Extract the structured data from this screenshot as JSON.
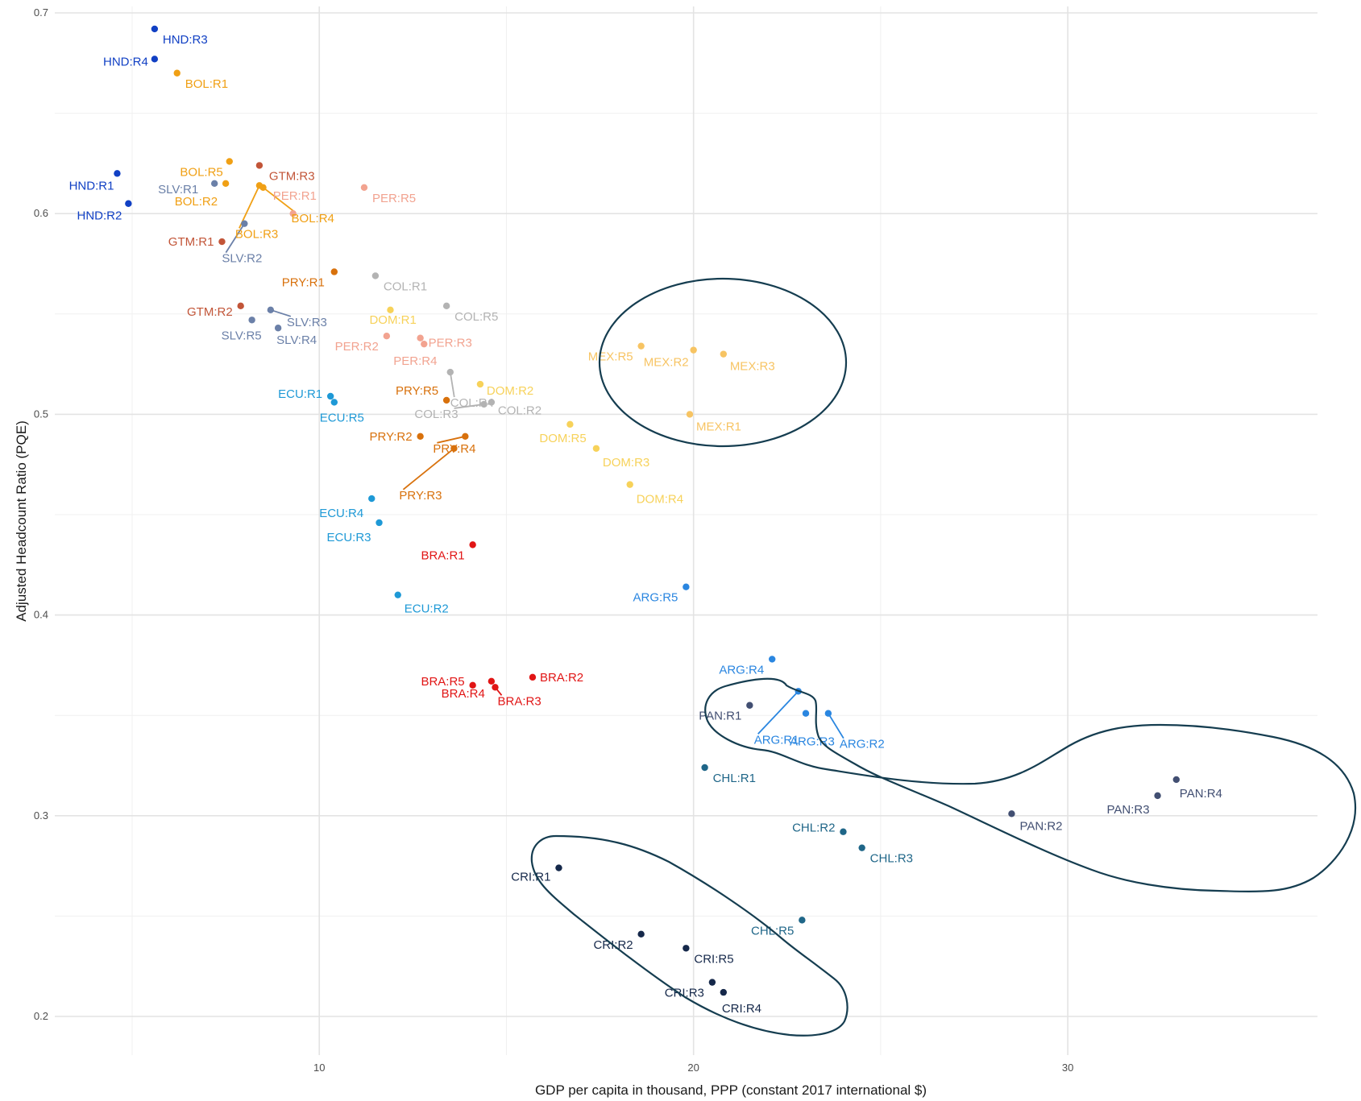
{
  "chart_data": {
    "type": "scatter",
    "title": "",
    "xlabel": "GDP per capita in thousand, PPP (constant 2017 international $)",
    "ylabel": "Adjusted Headcount Ratio (PQE)",
    "xlim": [
      3.4,
      34.5
    ],
    "ylim": [
      0.185,
      0.705
    ],
    "x_ticks": [
      10,
      20,
      30
    ],
    "x_tick_labels": [
      "10",
      "20",
      "30"
    ],
    "y_ticks": [
      0.2,
      0.3,
      0.4,
      0.5,
      0.6,
      0.7
    ],
    "y_tick_labels": [
      "0.2",
      "0.3",
      "0.4",
      "0.5",
      "0.6",
      "0.7"
    ],
    "grid": true,
    "legend": "none",
    "colors": {
      "HND": "#1140c4",
      "BOL": "#f0a015",
      "SLV": "#6b80a8",
      "GTM": "#c25538",
      "PER": "#f2a390",
      "PRY": "#d8710c",
      "COL": "#b3b3b3",
      "DOM": "#f7d25a",
      "MEX": "#f7c463",
      "ECU": "#1e99d6",
      "BRA": "#e11515",
      "ARG": "#2a86e0",
      "PAN": "#424f72",
      "CHL": "#1f6688",
      "CRI": "#15284a",
      "outline": "#153d50"
    },
    "points": [
      {
        "label": "HND:R3",
        "x": 5.6,
        "y": 0.692,
        "group": "HND"
      },
      {
        "label": "HND:R4",
        "x": 5.6,
        "y": 0.677,
        "group": "HND"
      },
      {
        "label": "HND:R1",
        "x": 4.6,
        "y": 0.62,
        "group": "HND"
      },
      {
        "label": "HND:R2",
        "x": 4.9,
        "y": 0.605,
        "group": "HND"
      },
      {
        "label": "BOL:R1",
        "x": 6.2,
        "y": 0.67,
        "group": "BOL"
      },
      {
        "label": "BOL:R5",
        "x": 7.6,
        "y": 0.626,
        "group": "BOL"
      },
      {
        "label": "BOL:R2",
        "x": 7.5,
        "y": 0.615,
        "group": "BOL"
      },
      {
        "label": "BOL:R3",
        "x": 8.4,
        "y": 0.614,
        "group": "BOL"
      },
      {
        "label": "BOL:R4",
        "x": 8.5,
        "y": 0.613,
        "group": "BOL"
      },
      {
        "label": "SLV:R1",
        "x": 7.2,
        "y": 0.615,
        "group": "SLV"
      },
      {
        "label": "SLV:R2",
        "x": 8.0,
        "y": 0.595,
        "group": "SLV"
      },
      {
        "label": "SLV:R3",
        "x": 8.7,
        "y": 0.552,
        "group": "SLV"
      },
      {
        "label": "SLV:R5",
        "x": 8.2,
        "y": 0.547,
        "group": "SLV"
      },
      {
        "label": "SLV:R4",
        "x": 8.9,
        "y": 0.543,
        "group": "SLV"
      },
      {
        "label": "GTM:R3",
        "x": 8.4,
        "y": 0.624,
        "group": "GTM"
      },
      {
        "label": "GTM:R1",
        "x": 7.4,
        "y": 0.586,
        "group": "GTM"
      },
      {
        "label": "GTM:R2",
        "x": 7.9,
        "y": 0.554,
        "group": "GTM"
      },
      {
        "label": "PER:R5",
        "x": 11.2,
        "y": 0.613,
        "group": "PER"
      },
      {
        "label": "PER:R1",
        "x": 9.3,
        "y": 0.6,
        "group": "PER"
      },
      {
        "label": "PER:R2",
        "x": 11.8,
        "y": 0.539,
        "group": "PER"
      },
      {
        "label": "PER:R3",
        "x": 12.7,
        "y": 0.538,
        "group": "PER"
      },
      {
        "label": "PER:R4",
        "x": 12.8,
        "y": 0.535,
        "group": "PER"
      },
      {
        "label": "PRY:R1",
        "x": 10.4,
        "y": 0.571,
        "group": "PRY"
      },
      {
        "label": "PRY:R5",
        "x": 13.4,
        "y": 0.507,
        "group": "PRY"
      },
      {
        "label": "PRY:R2",
        "x": 12.7,
        "y": 0.489,
        "group": "PRY"
      },
      {
        "label": "PRY:R4",
        "x": 13.9,
        "y": 0.489,
        "group": "PRY"
      },
      {
        "label": "PRY:R3",
        "x": 13.6,
        "y": 0.483,
        "group": "PRY"
      },
      {
        "label": "COL:R1",
        "x": 11.5,
        "y": 0.569,
        "group": "COL"
      },
      {
        "label": "COL:R5",
        "x": 13.4,
        "y": 0.554,
        "group": "COL"
      },
      {
        "label": "COL:R3",
        "x": 14.4,
        "y": 0.505,
        "group": "COL"
      },
      {
        "label": "COL:R2",
        "x": 14.6,
        "y": 0.506,
        "group": "COL"
      },
      {
        "label": "COL:R4",
        "x": 13.5,
        "y": 0.521,
        "group": "COL"
      },
      {
        "label": "DOM:R1",
        "x": 11.9,
        "y": 0.552,
        "group": "DOM"
      },
      {
        "label": "DOM:R2",
        "x": 14.3,
        "y": 0.515,
        "group": "DOM"
      },
      {
        "label": "DOM:R5",
        "x": 16.7,
        "y": 0.495,
        "group": "DOM"
      },
      {
        "label": "DOM:R3",
        "x": 17.4,
        "y": 0.483,
        "group": "DOM"
      },
      {
        "label": "DOM:R4",
        "x": 18.3,
        "y": 0.465,
        "group": "DOM"
      },
      {
        "label": "MEX:R5",
        "x": 18.6,
        "y": 0.534,
        "group": "MEX"
      },
      {
        "label": "MEX:R2",
        "x": 20.0,
        "y": 0.532,
        "group": "MEX"
      },
      {
        "label": "MEX:R3",
        "x": 20.8,
        "y": 0.53,
        "group": "MEX"
      },
      {
        "label": "MEX:R1",
        "x": 19.9,
        "y": 0.5,
        "group": "MEX"
      },
      {
        "label": "ECU:R1",
        "x": 10.3,
        "y": 0.509,
        "group": "ECU"
      },
      {
        "label": "ECU:R5",
        "x": 10.4,
        "y": 0.506,
        "group": "ECU"
      },
      {
        "label": "ECU:R4",
        "x": 11.4,
        "y": 0.458,
        "group": "ECU"
      },
      {
        "label": "ECU:R3",
        "x": 11.6,
        "y": 0.446,
        "group": "ECU"
      },
      {
        "label": "ECU:R2",
        "x": 12.1,
        "y": 0.41,
        "group": "ECU"
      },
      {
        "label": "BRA:R1",
        "x": 14.1,
        "y": 0.435,
        "group": "BRA"
      },
      {
        "label": "BRA:R5",
        "x": 14.1,
        "y": 0.365,
        "group": "BRA"
      },
      {
        "label": "BRA:R4",
        "x": 14.6,
        "y": 0.367,
        "group": "BRA"
      },
      {
        "label": "BRA:R3",
        "x": 14.7,
        "y": 0.364,
        "group": "BRA"
      },
      {
        "label": "BRA:R2",
        "x": 15.7,
        "y": 0.369,
        "group": "BRA"
      },
      {
        "label": "ARG:R5",
        "x": 19.8,
        "y": 0.414,
        "group": "ARG"
      },
      {
        "label": "ARG:R4",
        "x": 22.1,
        "y": 0.378,
        "group": "ARG"
      },
      {
        "label": "ARG:R1",
        "x": 22.8,
        "y": 0.362,
        "group": "ARG"
      },
      {
        "label": "ARG:R3",
        "x": 23.0,
        "y": 0.351,
        "group": "ARG"
      },
      {
        "label": "ARG:R2",
        "x": 23.6,
        "y": 0.351,
        "group": "ARG"
      },
      {
        "label": "PAN:R1",
        "x": 21.5,
        "y": 0.355,
        "group": "PAN"
      },
      {
        "label": "PAN:R2",
        "x": 28.5,
        "y": 0.301,
        "group": "PAN"
      },
      {
        "label": "PAN:R3",
        "x": 32.4,
        "y": 0.31,
        "group": "PAN"
      },
      {
        "label": "PAN:R4",
        "x": 32.9,
        "y": 0.318,
        "group": "PAN"
      },
      {
        "label": "CHL:R1",
        "x": 20.3,
        "y": 0.324,
        "group": "CHL"
      },
      {
        "label": "CHL:R2",
        "x": 24.0,
        "y": 0.292,
        "group": "CHL"
      },
      {
        "label": "CHL:R3",
        "x": 24.5,
        "y": 0.284,
        "group": "CHL"
      },
      {
        "label": "CHL:R5",
        "x": 22.9,
        "y": 0.248,
        "group": "CHL"
      },
      {
        "label": "CRI:R1",
        "x": 16.4,
        "y": 0.274,
        "group": "CRI"
      },
      {
        "label": "CRI:R2",
        "x": 18.6,
        "y": 0.241,
        "group": "CRI"
      },
      {
        "label": "CRI:R5",
        "x": 19.8,
        "y": 0.234,
        "group": "CRI"
      },
      {
        "label": "CRI:R3",
        "x": 20.5,
        "y": 0.217,
        "group": "CRI"
      },
      {
        "label": "CRI:R4",
        "x": 20.8,
        "y": 0.212,
        "group": "CRI"
      }
    ]
  }
}
